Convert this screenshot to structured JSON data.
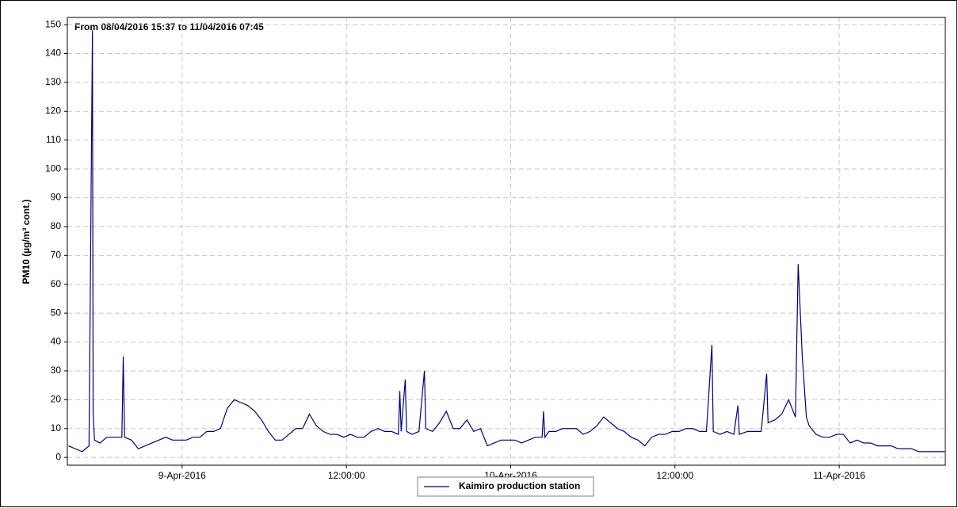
{
  "chart_data": {
    "type": "line",
    "title": "From 08/04/2016 15:37 to 11/04/2016 07:45",
    "y_label": "PM10 (µg/m³ cont.)",
    "x": [
      15.7,
      16.2,
      16.7,
      17.2,
      17.45,
      17.5,
      17.6,
      18.0,
      18.5,
      19.0,
      19.6,
      19.7,
      19.8,
      20.3,
      20.8,
      21.3,
      21.8,
      22.3,
      22.8,
      23.3,
      23.8,
      24.3,
      24.8,
      25.3,
      25.8,
      26.3,
      26.8,
      27.3,
      27.8,
      28.3,
      28.8,
      29.3,
      29.8,
      30.3,
      30.8,
      31.3,
      31.8,
      32.3,
      32.8,
      33.3,
      33.8,
      34.3,
      34.8,
      35.3,
      35.8,
      36.3,
      36.8,
      37.3,
      37.8,
      38.3,
      38.8,
      39.3,
      39.8,
      39.9,
      40.0,
      40.3,
      40.4,
      40.8,
      41.3,
      41.7,
      41.8,
      42.3,
      42.8,
      43.3,
      43.8,
      44.3,
      44.8,
      45.3,
      45.8,
      46.3,
      46.8,
      47.3,
      47.8,
      48.3,
      48.8,
      49.3,
      49.8,
      50.3,
      50.4,
      50.5,
      50.8,
      51.3,
      51.8,
      52.3,
      52.8,
      53.3,
      53.8,
      54.3,
      54.8,
      55.3,
      55.8,
      56.3,
      56.8,
      57.3,
      57.8,
      58.3,
      58.8,
      59.3,
      59.8,
      60.3,
      60.8,
      61.3,
      61.8,
      62.3,
      62.7,
      62.8,
      63.3,
      63.8,
      64.3,
      64.6,
      64.7,
      65.3,
      65.8,
      66.3,
      66.7,
      66.8,
      67.3,
      67.8,
      68.3,
      68.8,
      69.0,
      69.3,
      69.6,
      69.8,
      70.3,
      70.8,
      71.3,
      71.8,
      72.3,
      72.8,
      73.3,
      73.8,
      74.3,
      74.8,
      75.3,
      75.8,
      76.3,
      76.8,
      77.3,
      77.8,
      78.3,
      78.8,
      79.3,
      79.7
    ],
    "series": [
      {
        "name": "Kaimiro production station",
        "color": "#000080",
        "values": [
          4,
          3,
          2,
          4,
          148,
          15,
          6,
          5,
          7,
          7,
          7,
          35,
          7,
          6,
          3,
          4,
          5,
          6,
          7,
          6,
          6,
          6,
          7,
          7,
          9,
          9,
          10,
          17,
          20,
          19,
          18,
          16,
          13,
          9,
          6,
          6,
          8,
          10,
          10,
          15,
          11,
          9,
          8,
          8,
          7,
          8,
          7,
          7,
          9,
          10,
          9,
          9,
          8,
          23,
          9,
          27,
          9,
          8,
          9,
          30,
          10,
          9,
          12,
          16,
          10,
          10,
          13,
          9,
          10,
          4,
          5,
          6,
          6,
          6,
          5,
          6,
          7,
          7,
          16,
          7,
          9,
          9,
          10,
          10,
          10,
          8,
          9,
          11,
          14,
          12,
          10,
          9,
          7,
          6,
          4,
          7,
          8,
          8,
          9,
          9,
          10,
          10,
          9,
          9,
          39,
          9,
          8,
          9,
          8,
          18,
          8,
          9,
          9,
          9,
          29,
          12,
          13,
          15,
          20,
          14,
          67,
          35,
          14,
          11,
          8,
          7,
          7,
          8,
          8,
          5,
          6,
          5,
          5,
          4,
          4,
          4,
          3,
          3,
          3,
          2,
          2,
          2,
          2,
          2
        ]
      }
    ],
    "xlim": [
      15.617,
      79.75
    ],
    "xticks": [
      {
        "value": 24,
        "label": "9-Apr-2016"
      },
      {
        "value": 36,
        "label": "12:00:00"
      },
      {
        "value": 48,
        "label": "10-Apr-2016"
      },
      {
        "value": 60,
        "label": "12:00:00"
      },
      {
        "value": 72,
        "label": "11-Apr-2016"
      }
    ],
    "ylim": [
      -2.7,
      152.5
    ],
    "yticks": [
      0,
      10,
      20,
      30,
      40,
      50,
      60,
      70,
      80,
      90,
      100,
      110,
      120,
      130,
      140,
      150
    ],
    "grid": true
  }
}
